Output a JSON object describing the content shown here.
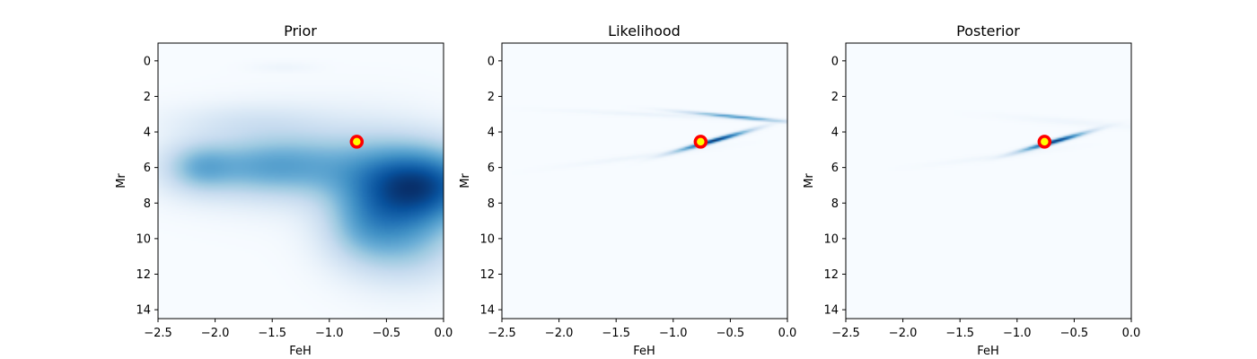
{
  "chart_data": [
    {
      "type": "heatmap",
      "title": "Prior",
      "xlabel": "FeH",
      "ylabel": "Mr",
      "xlim": [
        -2.5,
        0.0
      ],
      "ylim": [
        14.5,
        -1.0
      ],
      "y_inverted": true,
      "xticks": [
        -2.5,
        -2.0,
        -1.5,
        -1.0,
        -0.5,
        0.0
      ],
      "xtick_labels": [
        "−2.5",
        "−2.0",
        "−1.5",
        "−1.0",
        "−0.5",
        "0.0"
      ],
      "yticks": [
        0,
        2,
        4,
        6,
        8,
        10,
        12,
        14
      ],
      "ytick_labels": [
        "0",
        "2",
        "4",
        "6",
        "8",
        "10",
        "12",
        "14"
      ],
      "colormap": "Blues",
      "marker": {
        "x": -0.76,
        "y": 4.55,
        "edge_color": "#ff0000",
        "face_color": "#ffff00"
      },
      "density_components": [
        {
          "x": -1.6,
          "y": 6.0,
          "sx": 0.55,
          "sy": 1.2,
          "w": 0.55
        },
        {
          "x": -2.15,
          "y": 6.0,
          "sx": 0.2,
          "sy": 1.0,
          "w": 0.35
        },
        {
          "x": -1.2,
          "y": 5.5,
          "sx": 0.55,
          "sy": 1.8,
          "w": 0.3
        },
        {
          "x": -0.1,
          "y": 7.0,
          "sx": 0.4,
          "sy": 1.6,
          "w": 1.0
        },
        {
          "x": -0.5,
          "y": 7.5,
          "sx": 0.35,
          "sy": 2.2,
          "w": 0.5
        },
        {
          "x": -0.3,
          "y": 10.5,
          "sx": 0.35,
          "sy": 1.6,
          "w": 0.38
        },
        {
          "x": -0.75,
          "y": 9.5,
          "sx": 0.25,
          "sy": 1.5,
          "w": 0.3
        },
        {
          "x": -1.4,
          "y": 0.35,
          "sx": 0.2,
          "sy": 0.2,
          "w": 0.06
        },
        {
          "x": -1.8,
          "y": 3.3,
          "sx": 0.5,
          "sy": 0.7,
          "w": 0.15
        }
      ]
    },
    {
      "type": "heatmap",
      "title": "Likelihood",
      "xlabel": "FeH",
      "ylabel": "Mr",
      "xlim": [
        -2.5,
        0.0
      ],
      "ylim": [
        14.5,
        -1.0
      ],
      "y_inverted": true,
      "xticks": [
        -2.5,
        -2.0,
        -1.5,
        -1.0,
        -0.5,
        0.0
      ],
      "xtick_labels": [
        "−2.5",
        "−2.0",
        "−1.5",
        "−1.0",
        "−0.5",
        "0.0"
      ],
      "yticks": [
        0,
        2,
        4,
        6,
        8,
        10,
        12,
        14
      ],
      "ytick_labels": [
        "0",
        "2",
        "4",
        "6",
        "8",
        "10",
        "12",
        "14"
      ],
      "colormap": "Blues",
      "marker": {
        "x": -0.76,
        "y": 4.55,
        "edge_color": "#ff0000",
        "face_color": "#ffff00"
      },
      "density_components": [
        {
          "x": -0.65,
          "y": 4.5,
          "sx": 0.22,
          "sy": 0.09,
          "w": 1.0,
          "slope": -1.8
        },
        {
          "x": -0.45,
          "y": 3.15,
          "sx": 0.3,
          "sy": 0.07,
          "w": 0.6,
          "slope": 0.6
        },
        {
          "x": -1.1,
          "y": 3.05,
          "sx": 0.6,
          "sy": 0.09,
          "w": 0.06,
          "slope": 0.3
        },
        {
          "x": -1.3,
          "y": 5.4,
          "sx": 0.45,
          "sy": 0.1,
          "w": 0.05,
          "slope": -0.8
        }
      ]
    },
    {
      "type": "heatmap",
      "title": "Posterior",
      "xlabel": "FeH",
      "ylabel": "Mr",
      "xlim": [
        -2.5,
        0.0
      ],
      "ylim": [
        14.5,
        -1.0
      ],
      "y_inverted": true,
      "xticks": [
        -2.5,
        -2.0,
        -1.5,
        -1.0,
        -0.5,
        0.0
      ],
      "xtick_labels": [
        "−2.5",
        "−2.0",
        "−1.5",
        "−1.0",
        "−0.5",
        "0.0"
      ],
      "yticks": [
        0,
        2,
        4,
        6,
        8,
        10,
        12,
        14
      ],
      "ytick_labels": [
        "0",
        "2",
        "4",
        "6",
        "8",
        "10",
        "12",
        "14"
      ],
      "colormap": "Blues",
      "marker": {
        "x": -0.76,
        "y": 4.55,
        "edge_color": "#ff0000",
        "face_color": "#ffff00"
      },
      "density_components": [
        {
          "x": -0.68,
          "y": 4.55,
          "sx": 0.2,
          "sy": 0.09,
          "w": 1.0,
          "slope": -1.8
        },
        {
          "x": -0.5,
          "y": 3.45,
          "sx": 0.45,
          "sy": 0.14,
          "w": 0.04,
          "slope": 0.5
        },
        {
          "x": -1.2,
          "y": 5.4,
          "sx": 0.4,
          "sy": 0.1,
          "w": 0.04,
          "slope": -0.8
        }
      ]
    }
  ]
}
